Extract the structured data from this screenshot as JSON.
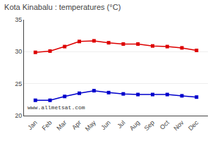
{
  "chart_data": {
    "type": "line",
    "title": "Kota Kinabalu : temperatures (°C)",
    "categories": [
      "Jan",
      "Feb",
      "Mar",
      "Apr",
      "May",
      "Jun",
      "Jul",
      "Aug",
      "Sep",
      "Oct",
      "Nov",
      "Dec"
    ],
    "series": [
      {
        "color": "#dd0000",
        "values": [
          29.9,
          30.1,
          30.8,
          31.6,
          31.7,
          31.4,
          31.2,
          31.2,
          30.9,
          30.8,
          30.6,
          30.2
        ]
      },
      {
        "color": "#0000cc",
        "values": [
          22.4,
          22.4,
          23.0,
          23.5,
          23.9,
          23.6,
          23.4,
          23.3,
          23.3,
          23.3,
          23.1,
          22.9
        ]
      }
    ],
    "marker": "square",
    "ylim": [
      20,
      35
    ],
    "yticks": [
      20,
      25,
      30,
      35
    ],
    "grid": true,
    "annotations": [
      "www.allmetsat.com"
    ]
  }
}
